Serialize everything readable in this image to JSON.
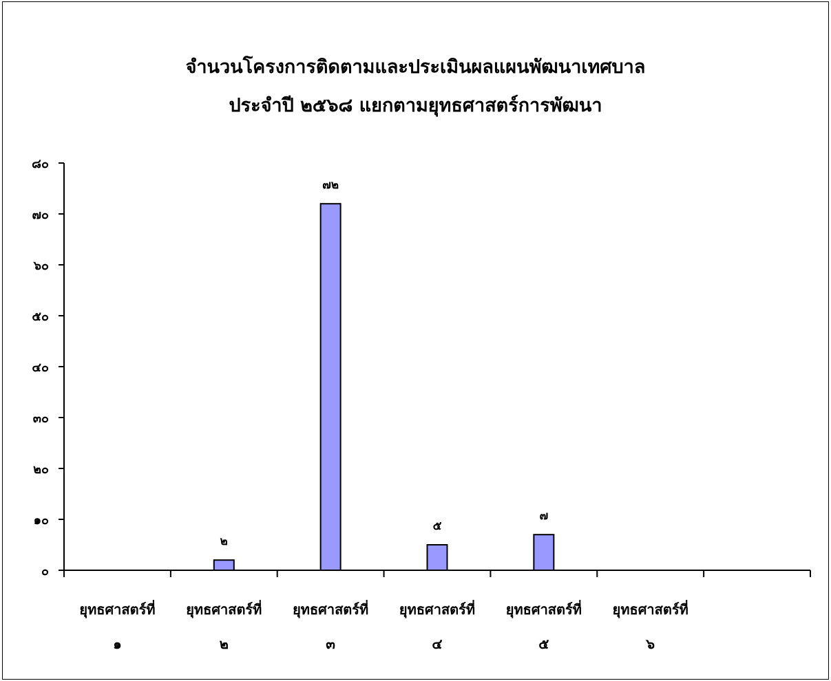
{
  "chart_data": {
    "type": "bar",
    "title_lines": [
      "จำนวนโครงการติดตามและประเมินผลแผนพัฒนาเทศบาล",
      "ประจำปี  ๒๕๖๘  แยกตามยุทธศาสตร์การพัฒนา"
    ],
    "categories": [
      [
        "ยุทธศาสตร์ที่",
        "๑"
      ],
      [
        "ยุทธศาสตร์ที่",
        "๒"
      ],
      [
        "ยุทธศาสตร์ที่",
        "๓"
      ],
      [
        "ยุทธศาสตร์ที่",
        "๔"
      ],
      [
        "ยุทธศาสตร์ที่",
        "๕"
      ],
      [
        "ยุทธศาสตร์ที่",
        "๖"
      ],
      [
        "",
        ""
      ]
    ],
    "values": [
      0,
      2,
      72,
      5,
      7,
      0,
      0
    ],
    "data_labels": [
      "",
      "๒",
      "๗๒",
      "๕",
      "๗",
      "",
      ""
    ],
    "ylim": [
      0,
      80
    ],
    "yticks": [
      0,
      10,
      20,
      30,
      40,
      50,
      60,
      70,
      80
    ],
    "ytick_labels": [
      "๐",
      "๑๐",
      "๒๐",
      "๓๐",
      "๔๐",
      "๕๐",
      "๖๐",
      "๗๐",
      "๘๐"
    ],
    "bar_color": "#9999FF",
    "bar_edge_color": "#000000",
    "grid": false,
    "legend": "none"
  }
}
